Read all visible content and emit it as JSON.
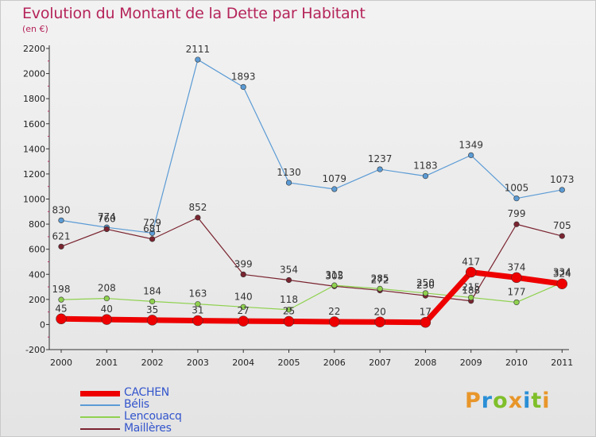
{
  "title": "Evolution du Montant de la Dette par Habitant",
  "unit": "(en €)",
  "brand": {
    "letters": [
      "P",
      "r",
      "o",
      "x",
      "i",
      "t",
      "i"
    ],
    "colors": [
      "#e8962a",
      "#2a8fd6",
      "#7fbf2a",
      "#e8962a",
      "#2a8fd6",
      "#7fbf2a",
      "#e8962a"
    ]
  },
  "chart_data": {
    "type": "line",
    "x": [
      "2000",
      "2001",
      "2002",
      "2003",
      "2004",
      "2005",
      "2006",
      "2007",
      "2008",
      "2009",
      "2010",
      "2011"
    ],
    "ylim": [
      -200,
      2200
    ],
    "yticks": [
      -200,
      0,
      200,
      400,
      600,
      800,
      1000,
      1200,
      1400,
      1600,
      1800,
      2000,
      2200
    ],
    "grid": false,
    "legend_position": "bottom-left",
    "series": [
      {
        "name": "Bélis",
        "color": "#5b9bd5",
        "values": [
          830,
          774,
          729,
          2111,
          1893,
          1130,
          1079,
          1237,
          1183,
          1349,
          1005,
          1073
        ],
        "labels": [
          "830",
          "774",
          "729",
          "2111",
          "1893",
          "1130",
          "1079",
          "1237",
          "1183",
          "1349",
          "1005",
          "1073"
        ]
      },
      {
        "name": "Maillères",
        "color": "#7a2430",
        "values": [
          621,
          760,
          681,
          852,
          399,
          354,
          305,
          272,
          230,
          188,
          799,
          705
        ],
        "labels": [
          "621",
          "760",
          "681",
          "852",
          "399",
          "354",
          "305",
          "272",
          "230",
          "188",
          "799",
          "705"
        ]
      },
      {
        "name": "Lencouacq",
        "color": "#8fd14f",
        "values": [
          198,
          208,
          184,
          163,
          140,
          118,
          312,
          285,
          250,
          215,
          177,
          334
        ],
        "labels": [
          "198",
          "208",
          "184",
          "163",
          "140",
          "118",
          "312",
          "285",
          "250",
          "215",
          "177",
          "334"
        ]
      },
      {
        "name": "CACHEN",
        "color": "#ee0000",
        "values": [
          45,
          40,
          35,
          31,
          27,
          25,
          22,
          20,
          17,
          417,
          374,
          324
        ],
        "labels": [
          "45",
          "40",
          "35",
          "31",
          "27",
          "25",
          "22",
          "20",
          "17",
          "417",
          "374",
          "324"
        ]
      }
    ],
    "legend_order": [
      "CACHEN",
      "Bélis",
      "Lencouacq",
      "Maillères"
    ]
  }
}
